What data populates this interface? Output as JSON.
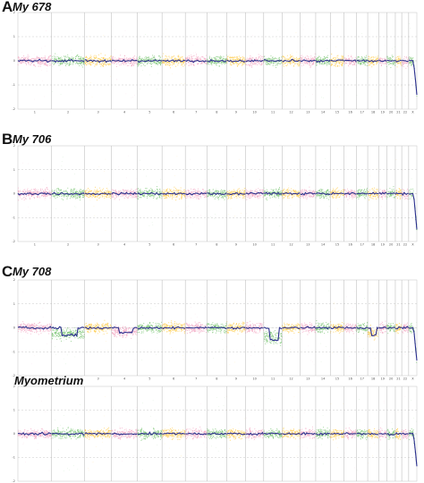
{
  "panels": [
    {
      "letter": "A",
      "title": "My 678"
    },
    {
      "letter": "B",
      "title": "My 706"
    },
    {
      "letter": "C",
      "title": "My 708"
    },
    {
      "letter": "",
      "title": "Myometrium"
    }
  ],
  "chart_data": [
    {
      "type": "scatter",
      "title": "My 678",
      "y_ticks": [
        "2",
        "1",
        "0",
        "-1",
        "-2"
      ],
      "ylim": [
        -2,
        2
      ],
      "chromosomes": [
        "1",
        "2",
        "3",
        "4",
        "5",
        "6",
        "7",
        "8",
        "9",
        "10",
        "11",
        "12",
        "13",
        "14",
        "15",
        "16",
        "17",
        "18",
        "19",
        "20",
        "21",
        "22",
        "X"
      ],
      "segment_colors": [
        "#f2a7c3",
        "#7cc576",
        "#ffcc4d"
      ],
      "segment_line_color": "#2b2f8f",
      "grid": true,
      "offsets": [
        0,
        0,
        0,
        0,
        0,
        0,
        0,
        0,
        0,
        0,
        0,
        0,
        0,
        0,
        0,
        0,
        0,
        0,
        0,
        0,
        0,
        0,
        -1.4
      ]
    },
    {
      "type": "scatter",
      "title": "My 706",
      "y_ticks": [
        "2",
        "1",
        "0",
        "-1",
        "-2"
      ],
      "ylim": [
        -2,
        2
      ],
      "chromosomes": [
        "1",
        "2",
        "3",
        "4",
        "5",
        "6",
        "7",
        "8",
        "9",
        "10",
        "11",
        "12",
        "13",
        "14",
        "15",
        "16",
        "17",
        "18",
        "19",
        "20",
        "21",
        "22",
        "X"
      ],
      "segment_colors": [
        "#f2a7c3",
        "#7cc576",
        "#ffcc4d"
      ],
      "segment_line_color": "#2b2f8f",
      "grid": true,
      "offsets": [
        0,
        0,
        0,
        0,
        0,
        0,
        0,
        0,
        0,
        0,
        0,
        0,
        0,
        0,
        0,
        0,
        0,
        0,
        0,
        0,
        0,
        0,
        -1.5
      ]
    },
    {
      "type": "scatter",
      "title": "My 708",
      "y_ticks": [
        "2",
        "1",
        "0",
        "-1",
        "-2"
      ],
      "ylim": [
        -2,
        2
      ],
      "chromosomes": [
        "1",
        "2",
        "3",
        "4",
        "5",
        "6",
        "7",
        "8",
        "9",
        "10",
        "11",
        "12",
        "13",
        "14",
        "15",
        "16",
        "17",
        "18",
        "19",
        "20",
        "21",
        "22",
        "X"
      ],
      "segment_colors": [
        "#f2a7c3",
        "#7cc576",
        "#ffcc4d"
      ],
      "segment_line_color": "#2b2f8f",
      "grid": true,
      "offsets": [
        0,
        -0.3,
        0,
        -0.2,
        0,
        0,
        0,
        0,
        0,
        0,
        -0.5,
        0,
        0,
        0,
        0,
        0,
        0,
        -0.3,
        0,
        0,
        0,
        0,
        -1.4
      ]
    },
    {
      "type": "scatter",
      "title": "Myometrium",
      "y_ticks": [
        "2",
        "1",
        "0",
        "-1",
        "-2"
      ],
      "ylim": [
        -2,
        2
      ],
      "chromosomes": [
        "1",
        "2",
        "3",
        "4",
        "5",
        "6",
        "7",
        "8",
        "9",
        "10",
        "11",
        "12",
        "13",
        "14",
        "15",
        "16",
        "17",
        "18",
        "19",
        "20",
        "21",
        "22",
        "X"
      ],
      "segment_colors": [
        "#f2a7c3",
        "#7cc576",
        "#ffcc4d"
      ],
      "segment_line_color": "#2b2f8f",
      "grid": true,
      "offsets": [
        0,
        0,
        0,
        0,
        0,
        0,
        0,
        0,
        0,
        0,
        0,
        0,
        0,
        0,
        0,
        0,
        0,
        0,
        0,
        0,
        0,
        0,
        -1.4
      ]
    }
  ]
}
